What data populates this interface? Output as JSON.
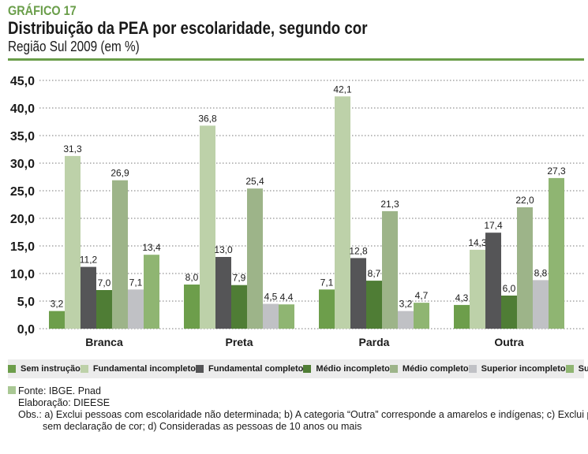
{
  "header": {
    "kicker": "GRÁFICO 17",
    "title": "Distribuição da PEA por escolaridade, segundo cor",
    "subtitle": "Região Sul 2009 (em %)"
  },
  "chart_data": {
    "type": "bar",
    "categories": [
      "Branca",
      "Preta",
      "Parda",
      "Outra"
    ],
    "ylim": [
      0,
      45
    ],
    "yticks": [
      "0,0",
      "5,0",
      "10,0",
      "15,0",
      "20,0",
      "25,0",
      "30,0",
      "35,0",
      "40,0",
      "45,0"
    ],
    "grid": true,
    "legend_position": "bottom",
    "series": [
      {
        "name": "Sem instrução",
        "color": "#6d9e4b",
        "values": [
          3.2,
          8.0,
          7.1,
          4.3
        ],
        "labels": [
          "3,2",
          "8,0",
          "7,1",
          "4,3"
        ]
      },
      {
        "name": "Fundamental incompleto",
        "color": "#bdd1a9",
        "values": [
          31.3,
          36.8,
          42.1,
          14.3
        ],
        "labels": [
          "31,3",
          "36,8",
          "42,1",
          "14,3"
        ]
      },
      {
        "name": "Fundamental completo",
        "color": "#555557",
        "values": [
          11.2,
          13.0,
          12.8,
          17.4
        ],
        "labels": [
          "11,2",
          "13,0",
          "12,8",
          "17,4"
        ]
      },
      {
        "name": "Médio incompleto",
        "color": "#4f7d35",
        "values": [
          7.0,
          7.9,
          8.7,
          6.0
        ],
        "labels": [
          "7,0",
          "7,9",
          "8,7",
          "6,0"
        ]
      },
      {
        "name": "Médio completo",
        "color": "#9db489",
        "values": [
          26.9,
          25.4,
          21.3,
          22.0
        ],
        "labels": [
          "26,9",
          "25,4",
          "21,3",
          "22,0"
        ]
      },
      {
        "name": "Superior incompleto",
        "color": "#c0c1c5",
        "values": [
          7.1,
          4.5,
          3.2,
          8.8
        ],
        "labels": [
          "7,1",
          "4,5",
          "3,2",
          "8,8"
        ]
      },
      {
        "name": "Superior completo",
        "color": "#8fb572",
        "values": [
          13.4,
          4.4,
          4.7,
          27.3
        ],
        "labels": [
          "13,4",
          "4,4",
          "4,7",
          "27,3"
        ]
      }
    ]
  },
  "notes": {
    "fonte": "Fonte: IBGE. Pnad",
    "elaboracao": "Elaboração: DIEESE",
    "obs1": "Obs.: a) Exclui pessoas com escolaridade não determinada; b) A categoria “Outra” corresponde a amarelos e indígenas; c) Exclui pessoas",
    "obs2": "sem declaração de cor; d) Consideradas as pessoas de 10 anos ou mais",
    "marker_color": "#a9c894"
  }
}
